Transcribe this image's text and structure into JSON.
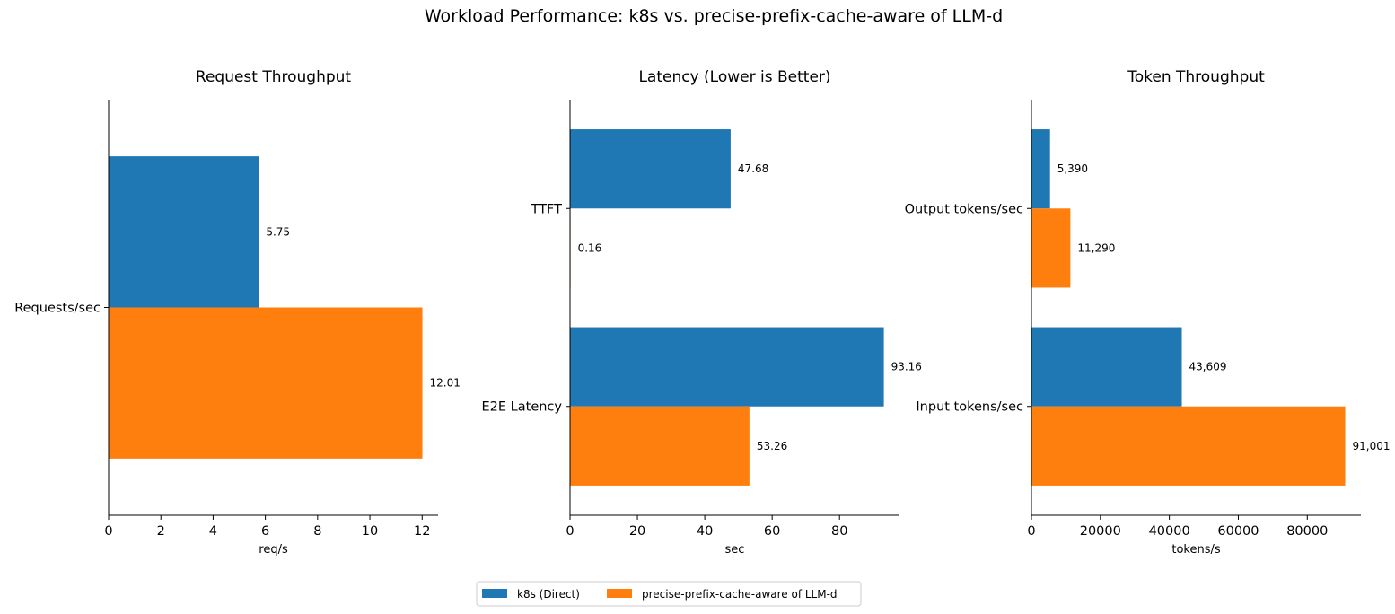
{
  "suptitle": "Workload Performance: k8s vs. precise-prefix-cache-aware of LLM-d",
  "colors": {
    "k8s": "#1f77b4",
    "llmd": "#ff7f0e"
  },
  "legend": [
    "k8s (Direct)",
    "precise-prefix-cache-aware of LLM-d"
  ],
  "chart_data": [
    {
      "type": "bar",
      "orientation": "horizontal",
      "title": "Request Throughput",
      "xlabel": "req/s",
      "ylabel": "",
      "categories": [
        "Requests/sec"
      ],
      "series": [
        {
          "name": "k8s (Direct)",
          "values": [
            5.75
          ],
          "labels": [
            "5.75"
          ]
        },
        {
          "name": "precise-prefix-cache-aware of LLM-d",
          "values": [
            12.01
          ],
          "labels": [
            "12.01"
          ]
        }
      ],
      "xlim": [
        0,
        12.61
      ],
      "xticks": [
        0,
        2,
        4,
        6,
        8,
        10,
        12
      ],
      "xtick_labels": [
        "0",
        "2",
        "4",
        "6",
        "8",
        "10",
        "12"
      ]
    },
    {
      "type": "bar",
      "orientation": "horizontal",
      "title": "Latency (Lower is Better)",
      "xlabel": "sec",
      "ylabel": "",
      "categories": [
        "TTFT",
        "E2E Latency"
      ],
      "series": [
        {
          "name": "k8s (Direct)",
          "values": [
            47.68,
            93.16
          ],
          "labels": [
            "47.68",
            "93.16"
          ]
        },
        {
          "name": "precise-prefix-cache-aware of LLM-d",
          "values": [
            0.16,
            53.26
          ],
          "labels": [
            "0.16",
            "53.26"
          ]
        }
      ],
      "xlim": [
        0,
        97.8
      ],
      "xticks": [
        0,
        20,
        40,
        60,
        80
      ],
      "xtick_labels": [
        "0",
        "20",
        "40",
        "60",
        "80"
      ]
    },
    {
      "type": "bar",
      "orientation": "horizontal",
      "title": "Token Throughput",
      "xlabel": "tokens/s",
      "ylabel": "",
      "categories": [
        "Output tokens/sec",
        "Input tokens/sec"
      ],
      "series": [
        {
          "name": "k8s (Direct)",
          "values": [
            5390,
            43609
          ],
          "labels": [
            "5,390",
            "43,609"
          ]
        },
        {
          "name": "precise-prefix-cache-aware of LLM-d",
          "values": [
            11290,
            91001
          ],
          "labels": [
            "11,290",
            "91,001"
          ]
        }
      ],
      "xlim": [
        0,
        95550
      ],
      "xticks": [
        0,
        20000,
        40000,
        60000,
        80000
      ],
      "xtick_labels": [
        "0",
        "20000",
        "40000",
        "60000",
        "80000"
      ]
    }
  ]
}
